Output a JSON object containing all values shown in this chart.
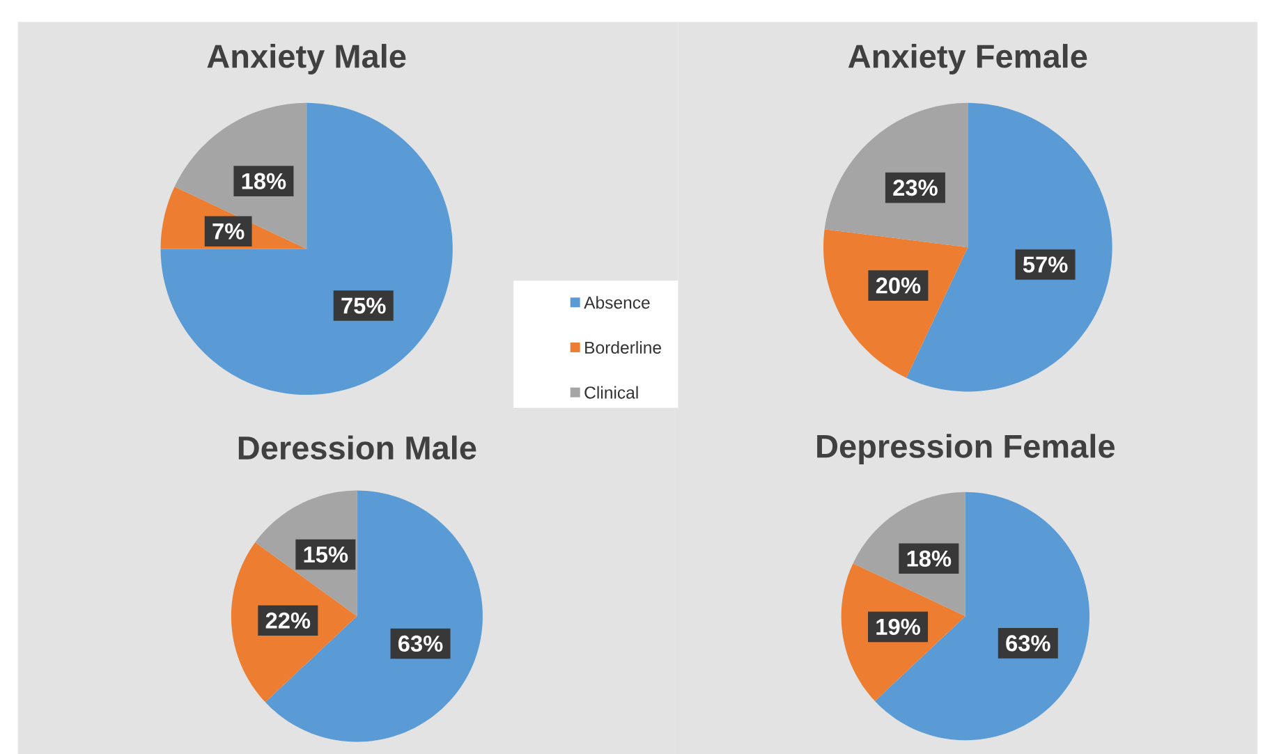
{
  "chart_data": [
    {
      "type": "pie",
      "title": "Anxiety Male",
      "categories": [
        "Absence",
        "Borderline",
        "Clinical"
      ],
      "values": [
        75,
        7,
        18
      ],
      "colors": [
        "#5b9bd5",
        "#ed7d31",
        "#a5a5a5"
      ],
      "value_labels": [
        "75%",
        "7%",
        "18%"
      ],
      "legend": "bottom right"
    },
    {
      "type": "pie",
      "title": "Anxiety Female",
      "values": [
        57,
        20,
        23
      ],
      "colors": [
        "#5b9bd5",
        "#ed7d31",
        "#a5a5a5"
      ],
      "value_labels": [
        "57%",
        "20%",
        "23%"
      ]
    },
    {
      "type": "pie",
      "title": "Deression Male",
      "values": [
        63,
        22,
        15
      ],
      "colors": [
        "#5b9bd5",
        "#ed7d31",
        "#a5a5a5"
      ],
      "value_labels": [
        "63%",
        "22%",
        "15%"
      ]
    },
    {
      "type": "pie",
      "title": "Depression Female",
      "values": [
        63,
        19,
        18
      ],
      "colors": [
        "#5b9bd5",
        "#ed7d31",
        "#a5a5a5"
      ],
      "value_labels": [
        "63%",
        "19%",
        "18%"
      ]
    }
  ]
}
